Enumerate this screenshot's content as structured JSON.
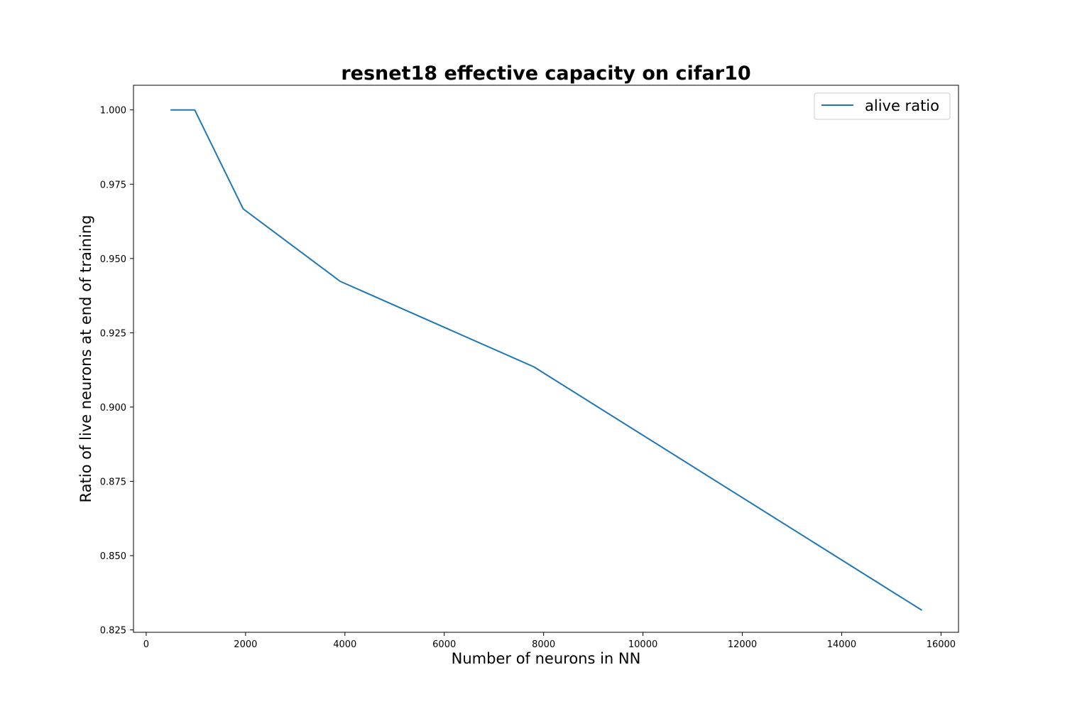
{
  "chart_data": {
    "type": "line",
    "title": "resnet18 effective capacity on cifar10",
    "xlabel": "Number of neurons in NN",
    "ylabel": "Ratio of live neurons at end of training",
    "xlim": [
      -256,
      16352
    ],
    "ylim": [
      0.8242,
      1.0083
    ],
    "xticks": [
      0,
      2000,
      4000,
      6000,
      8000,
      10000,
      12000,
      14000,
      16000
    ],
    "xtick_labels": [
      "0",
      "2000",
      "4000",
      "6000",
      "8000",
      "10000",
      "12000",
      "14000",
      "16000"
    ],
    "yticks": [
      0.825,
      0.85,
      0.875,
      0.9,
      0.925,
      0.95,
      0.975,
      1.0
    ],
    "ytick_labels": [
      "0.825",
      "0.850",
      "0.875",
      "0.900",
      "0.925",
      "0.950",
      "0.975",
      "1.000"
    ],
    "grid": false,
    "legend_position": "top-right",
    "series": [
      {
        "name": "alive ratio",
        "color": "#1f77b4",
        "x": [
          488,
          976,
          1952,
          3904,
          7808,
          15616
        ],
        "y": [
          1.0,
          1.0,
          0.9667,
          0.9423,
          0.9135,
          0.8316
        ]
      }
    ]
  }
}
